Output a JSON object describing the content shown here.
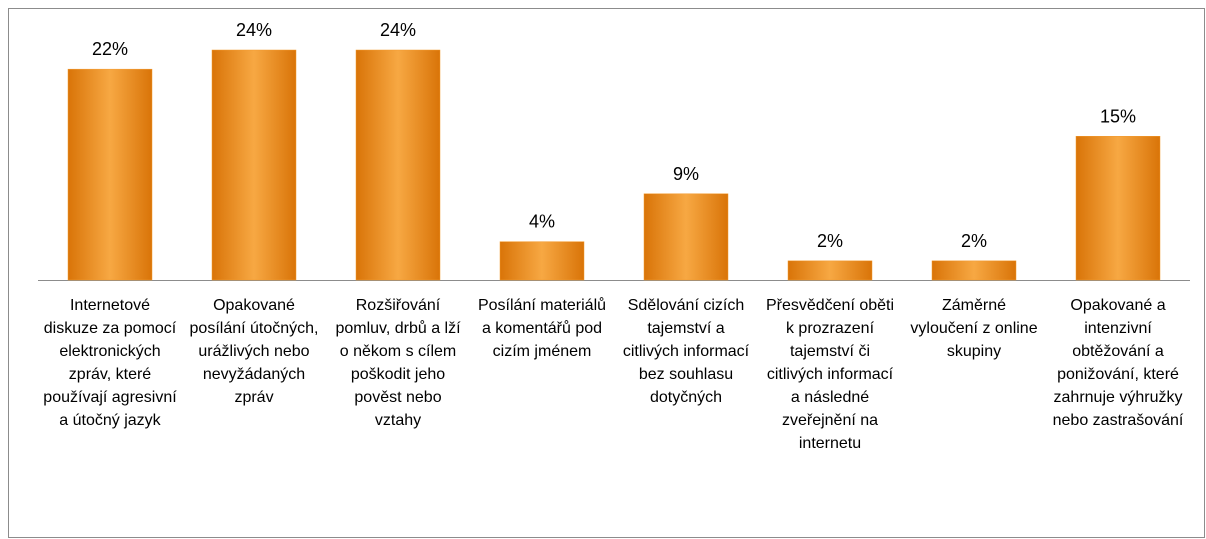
{
  "chart_data": {
    "type": "bar",
    "categories": [
      "Internetové diskuze za pomocí elektronických zpráv, které používají agresivní a útočný jazyk",
      "Opakované posílání útočných, urážlivých nebo nevyžádaných zpráv",
      "Rozšiřování pomluv, drbů a lží o někom s cílem poškodit jeho pověst nebo vztahy",
      "Posílání materiálů a komentářů pod cizím jménem",
      "Sdělování cizích tajemství a citlivých informací bez souhlasu dotyčných",
      "Přesvědčení oběti k prozrazení tajemství či citlivých informací a následné zveřejnění na internetu",
      "Záměrné vyloučení z online skupiny",
      "Opakované a intenzivní obtěžování a ponižování, které zahrnuje výhružky nebo zastrašování"
    ],
    "values": [
      22,
      24,
      24,
      4,
      9,
      2,
      2,
      15
    ],
    "value_labels": [
      "22%",
      "24%",
      "24%",
      "4%",
      "9%",
      "2%",
      "2%",
      "15%"
    ],
    "color": "#f39a2e"
  }
}
